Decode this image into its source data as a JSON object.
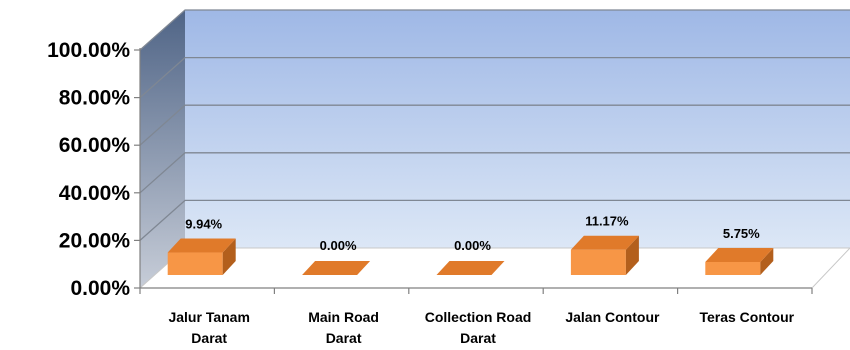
{
  "chart_data": {
    "type": "bar",
    "categories": [
      [
        "Jalur Tanam",
        "Darat"
      ],
      [
        "Main Road",
        "Darat"
      ],
      [
        "Collection Road",
        "Darat"
      ],
      [
        "Jalan Contour"
      ],
      [
        "Teras Contour"
      ]
    ],
    "values": [
      9.94,
      0.0,
      0.0,
      11.17,
      5.75
    ],
    "data_labels": [
      "9.94%",
      "0.00%",
      "0.00%",
      "11.17%",
      "5.75%"
    ],
    "yticks": [
      "0.00%",
      "20.00%",
      "40.00%",
      "60.00%",
      "80.00%",
      "100.00%"
    ],
    "ylim": [
      0,
      100
    ],
    "grid": true,
    "style": "3d-column",
    "colors": {
      "bar_front": "#f79646",
      "bar_top": "#e07a2a",
      "bar_side": "#b35f1c",
      "back_wall_top": "#9fb8e6",
      "back_wall_bottom": "#dce7f6",
      "side_wall_top": "#4f6486",
      "side_wall_bottom": "#c7cdd8"
    }
  }
}
